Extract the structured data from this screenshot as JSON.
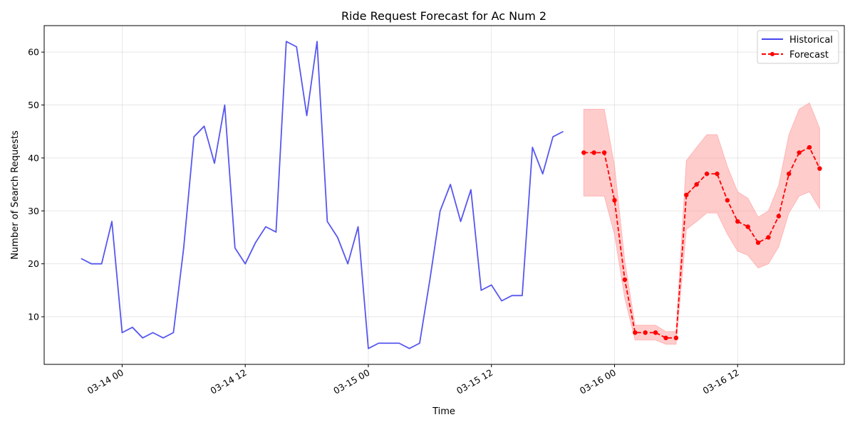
{
  "chart_data": {
    "type": "line",
    "title": "Ride Request Forecast for Ac Num 2",
    "xlabel": "Time",
    "ylabel": "Number of Search Requests",
    "x_ticks": [
      {
        "label": "03-14 00",
        "hours": 0
      },
      {
        "label": "03-14 12",
        "hours": 12
      },
      {
        "label": "03-15 00",
        "hours": 24
      },
      {
        "label": "03-15 12",
        "hours": 36
      },
      {
        "label": "03-16 00",
        "hours": 48
      },
      {
        "label": "03-16 12",
        "hours": 60
      }
    ],
    "y_ticks": [
      10,
      20,
      30,
      40,
      50,
      60
    ],
    "ylim": [
      1,
      65
    ],
    "xlim": [
      -7.6,
      70.4
    ],
    "grid": true,
    "legend_position": "top-right",
    "series": [
      {
        "name": "Historical",
        "color": "#4444ee",
        "style": "solid",
        "start_hour": -4,
        "step_hours": 1,
        "values": [
          21,
          20,
          20,
          28,
          7,
          8,
          6,
          7,
          6,
          7,
          23,
          44,
          46,
          39,
          50,
          23,
          20,
          24,
          27,
          26,
          62,
          61,
          48,
          62,
          28,
          25,
          20,
          27,
          4,
          5,
          5,
          5,
          4,
          5,
          17,
          30,
          35,
          28,
          34,
          15,
          16,
          13,
          14,
          14,
          42,
          37,
          44,
          45
        ]
      },
      {
        "name": "Forecast",
        "color": "#ff0000",
        "style": "dashed",
        "marker": "circle",
        "start_hour": 45,
        "step_hours": 1,
        "values": [
          41,
          41,
          41,
          32,
          17,
          7,
          7,
          7,
          6,
          6,
          33,
          35,
          37,
          37,
          32,
          28,
          27,
          24,
          25,
          29,
          37,
          41,
          42,
          38
        ]
      }
    ],
    "confidence_band": {
      "color": "#ff9999",
      "start_hour": 45,
      "step_hours": 1,
      "lower": [
        32.8,
        32.8,
        32.8,
        25.5,
        13.5,
        5.6,
        5.6,
        5.6,
        4.8,
        4.8,
        26.5,
        28.0,
        29.6,
        29.6,
        25.6,
        22.4,
        21.6,
        19.2,
        20.0,
        23.2,
        29.6,
        32.8,
        33.6,
        30.4
      ],
      "upper": [
        49.2,
        49.2,
        49.2,
        38.5,
        20.5,
        8.4,
        8.4,
        8.4,
        7.2,
        7.2,
        39.5,
        42.0,
        44.4,
        44.4,
        38.4,
        33.6,
        32.4,
        28.8,
        30.0,
        34.8,
        44.4,
        49.2,
        50.4,
        45.6
      ]
    }
  }
}
